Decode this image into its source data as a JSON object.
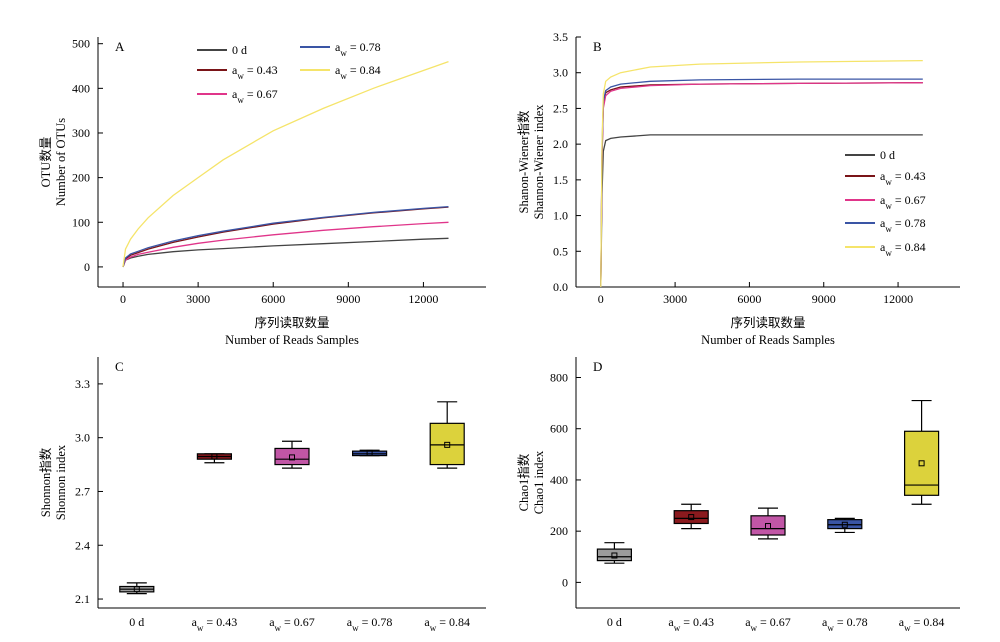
{
  "chart_data": [
    {
      "panel": "A",
      "type": "line",
      "xlabel": "序列读取数量",
      "xlabel_en": "Number of Reads Samples",
      "ylabel": "OTU数量",
      "ylabel_en": "Number of OTUs",
      "xlim": [
        -1000,
        14500
      ],
      "ylim": [
        -45,
        515
      ],
      "xticks": [
        0,
        3000,
        6000,
        9000,
        12000
      ],
      "yticks": [
        0,
        100,
        200,
        300,
        400,
        500
      ],
      "legend_position": "top-center",
      "series": [
        {
          "name": "0 d",
          "color": "#444444",
          "values": [
            [
              0,
              0
            ],
            [
              100,
              15
            ],
            [
              300,
              20
            ],
            [
              600,
              24
            ],
            [
              1000,
              28
            ],
            [
              2000,
              34
            ],
            [
              3000,
              38
            ],
            [
              4000,
              41
            ],
            [
              6000,
              47
            ],
            [
              8000,
              52
            ],
            [
              10000,
              57
            ],
            [
              12000,
              62
            ],
            [
              13000,
              64
            ]
          ]
        },
        {
          "name": "0.43",
          "color": "#7a1418",
          "values": [
            [
              0,
              0
            ],
            [
              100,
              18
            ],
            [
              300,
              26
            ],
            [
              600,
              32
            ],
            [
              1000,
              40
            ],
            [
              2000,
              55
            ],
            [
              3000,
              67
            ],
            [
              4000,
              78
            ],
            [
              6000,
              96
            ],
            [
              8000,
              110
            ],
            [
              10000,
              121
            ],
            [
              12000,
              130
            ],
            [
              13000,
              134
            ]
          ]
        },
        {
          "name": "0.67",
          "color": "#e0358a",
          "values": [
            [
              0,
              0
            ],
            [
              100,
              15
            ],
            [
              300,
              22
            ],
            [
              600,
              28
            ],
            [
              1000,
              33
            ],
            [
              2000,
              44
            ],
            [
              3000,
              53
            ],
            [
              4000,
              60
            ],
            [
              6000,
              72
            ],
            [
              8000,
              82
            ],
            [
              10000,
              90
            ],
            [
              12000,
              97
            ],
            [
              13000,
              100
            ]
          ]
        },
        {
          "name": "0.78",
          "color": "#3a55a5",
          "values": [
            [
              0,
              0
            ],
            [
              100,
              20
            ],
            [
              300,
              29
            ],
            [
              600,
              35
            ],
            [
              1000,
              43
            ],
            [
              2000,
              58
            ],
            [
              3000,
              70
            ],
            [
              4000,
              80
            ],
            [
              6000,
              98
            ],
            [
              8000,
              111
            ],
            [
              10000,
              122
            ],
            [
              12000,
              131
            ],
            [
              13000,
              135
            ]
          ]
        },
        {
          "name": "0.84",
          "color": "#f5e46a",
          "values": [
            [
              0,
              0
            ],
            [
              100,
              40
            ],
            [
              300,
              62
            ],
            [
              600,
              85
            ],
            [
              1000,
              110
            ],
            [
              2000,
              160
            ],
            [
              3000,
              200
            ],
            [
              4000,
              240
            ],
            [
              6000,
              305
            ],
            [
              8000,
              355
            ],
            [
              10000,
              400
            ],
            [
              12000,
              440
            ],
            [
              13000,
              460
            ]
          ]
        }
      ]
    },
    {
      "panel": "B",
      "type": "line",
      "xlabel": "序列读取数量",
      "xlabel_en": "Number of Reads Samples",
      "ylabel": "Shanon-Wiener指数",
      "ylabel_en": "Shannon-Wiener index",
      "xlim": [
        -1000,
        14500
      ],
      "ylim": [
        0,
        3.5
      ],
      "xticks": [
        0,
        3000,
        6000,
        9000,
        12000
      ],
      "yticks": [
        0.0,
        0.5,
        1.0,
        1.5,
        2.0,
        2.5,
        3.0,
        3.5
      ],
      "legend_position": "bottom-right",
      "series": [
        {
          "name": "0 d",
          "color": "#444444",
          "values": [
            [
              0,
              0
            ],
            [
              50,
              1.3
            ],
            [
              100,
              1.9
            ],
            [
              200,
              2.05
            ],
            [
              400,
              2.08
            ],
            [
              800,
              2.1
            ],
            [
              2000,
              2.13
            ],
            [
              4000,
              2.13
            ],
            [
              8000,
              2.13
            ],
            [
              13000,
              2.13
            ]
          ]
        },
        {
          "name": "0.43",
          "color": "#7a1418",
          "values": [
            [
              0,
              0
            ],
            [
              50,
              1.8
            ],
            [
              100,
              2.55
            ],
            [
              200,
              2.72
            ],
            [
              400,
              2.76
            ],
            [
              800,
              2.8
            ],
            [
              2000,
              2.83
            ],
            [
              4000,
              2.84
            ],
            [
              8000,
              2.85
            ],
            [
              13000,
              2.86
            ]
          ]
        },
        {
          "name": "0.67",
          "color": "#e0358a",
          "values": [
            [
              0,
              0
            ],
            [
              50,
              1.8
            ],
            [
              100,
              2.5
            ],
            [
              200,
              2.68
            ],
            [
              400,
              2.74
            ],
            [
              800,
              2.78
            ],
            [
              2000,
              2.82
            ],
            [
              4000,
              2.84
            ],
            [
              8000,
              2.85
            ],
            [
              13000,
              2.86
            ]
          ]
        },
        {
          "name": "0.78",
          "color": "#3a55a5",
          "values": [
            [
              0,
              0
            ],
            [
              50,
              1.9
            ],
            [
              100,
              2.6
            ],
            [
              200,
              2.75
            ],
            [
              400,
              2.8
            ],
            [
              800,
              2.84
            ],
            [
              2000,
              2.88
            ],
            [
              4000,
              2.9
            ],
            [
              8000,
              2.91
            ],
            [
              13000,
              2.91
            ]
          ]
        },
        {
          "name": "0.84",
          "color": "#f5e46a",
          "values": [
            [
              0,
              0
            ],
            [
              50,
              2.0
            ],
            [
              100,
              2.7
            ],
            [
              200,
              2.88
            ],
            [
              400,
              2.94
            ],
            [
              800,
              3.0
            ],
            [
              2000,
              3.08
            ],
            [
              4000,
              3.12
            ],
            [
              8000,
              3.15
            ],
            [
              13000,
              3.17
            ]
          ]
        }
      ]
    },
    {
      "panel": "C",
      "type": "box",
      "ylabel": "Shonnon指数",
      "ylabel_en": "Shonnon index",
      "ylim": [
        2.05,
        3.45
      ],
      "yticks": [
        2.1,
        2.4,
        2.7,
        3.0,
        3.3
      ],
      "categories": [
        "0 d",
        "0.43",
        "0.67",
        "0.78",
        "0.84"
      ],
      "boxes": [
        {
          "min": 2.13,
          "q1": 2.14,
          "median": 2.155,
          "q3": 2.17,
          "max": 2.19,
          "mean": 2.155,
          "color": "#9b9b9b"
        },
        {
          "min": 2.86,
          "q1": 2.88,
          "median": 2.895,
          "q3": 2.91,
          "max": 2.91,
          "mean": 2.895,
          "color": "#8b1a1e"
        },
        {
          "min": 2.83,
          "q1": 2.85,
          "median": 2.88,
          "q3": 2.94,
          "max": 2.98,
          "mean": 2.89,
          "color": "#c156a6"
        },
        {
          "min": 2.9,
          "q1": 2.9,
          "median": 2.91,
          "q3": 2.925,
          "max": 2.93,
          "mean": 2.915,
          "color": "#3a55a5"
        },
        {
          "min": 2.83,
          "q1": 2.85,
          "median": 2.96,
          "q3": 3.08,
          "max": 3.2,
          "mean": 2.96,
          "color": "#dcd23c"
        }
      ]
    },
    {
      "panel": "D",
      "type": "box",
      "ylabel": "Chao1指数",
      "ylabel_en": "Chao1 index",
      "ylim": [
        -100,
        880
      ],
      "yticks": [
        0,
        200,
        400,
        600,
        800
      ],
      "categories": [
        "0 d",
        "0.43",
        "0.67",
        "0.78",
        "0.84"
      ],
      "boxes": [
        {
          "min": 75,
          "q1": 85,
          "median": 100,
          "q3": 130,
          "max": 155,
          "mean": 105,
          "color": "#9b9b9b"
        },
        {
          "min": 210,
          "q1": 230,
          "median": 250,
          "q3": 280,
          "max": 305,
          "mean": 255,
          "color": "#8b1a1e"
        },
        {
          "min": 170,
          "q1": 185,
          "median": 210,
          "q3": 260,
          "max": 290,
          "mean": 220,
          "color": "#c156a6"
        },
        {
          "min": 195,
          "q1": 210,
          "median": 225,
          "q3": 245,
          "max": 250,
          "mean": 225,
          "color": "#3a55a5"
        },
        {
          "min": 305,
          "q1": 340,
          "median": 380,
          "q3": 590,
          "max": 710,
          "mean": 465,
          "color": "#dcd23c"
        }
      ]
    }
  ]
}
